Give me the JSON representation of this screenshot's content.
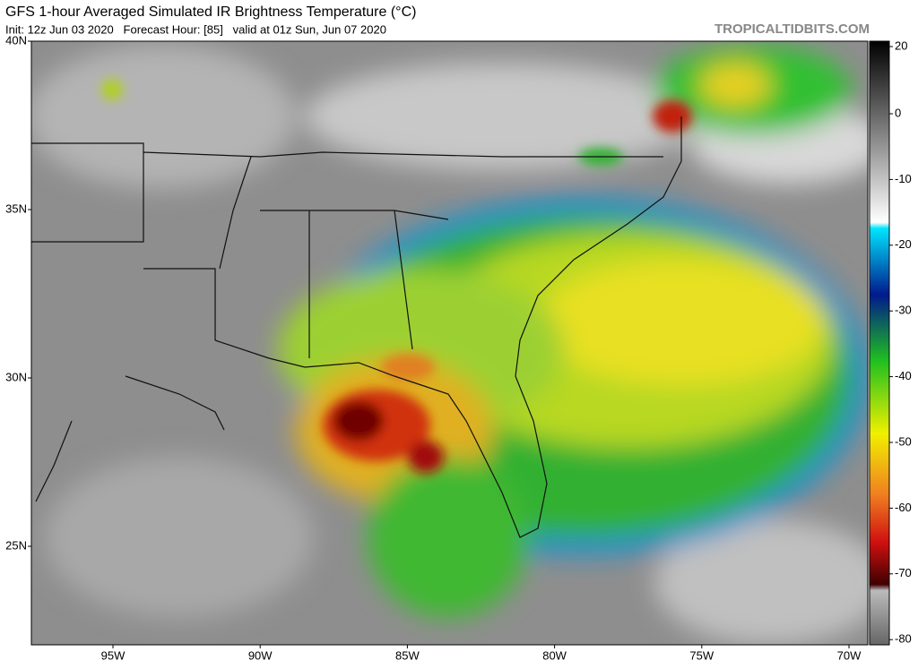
{
  "header": {
    "title": "GFS 1-hour Averaged Simulated IR Brightness Temperature (°C)",
    "subtitle": "Init: 12z Jun 03 2020   Forecast Hour: [85]   valid at 01z Sun, Jun 07 2020",
    "site": "TROPICALTIDBITS.COM"
  },
  "map": {
    "latitude_labels": [
      "40N",
      "35N",
      "30N",
      "25N"
    ],
    "longitude_labels": [
      "95W",
      "90W",
      "85W",
      "80W",
      "75W",
      "70W"
    ]
  },
  "colorbar": {
    "ticks": [
      20,
      0,
      -10,
      -20,
      -30,
      -40,
      -50,
      -60,
      -70,
      -80
    ]
  }
}
